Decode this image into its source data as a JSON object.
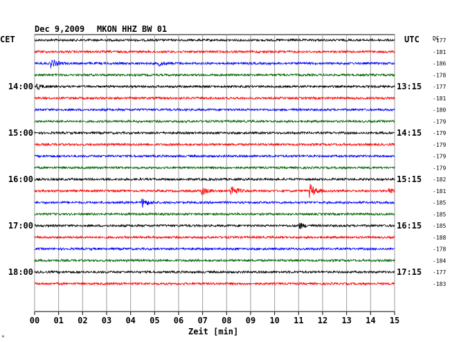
{
  "header": {
    "date": "Dec 9,2009",
    "station": "MKON HHZ BW 01",
    "left_zone": "CET",
    "right_zone": "UTC",
    "dc_label": "DC",
    "corner_mark": "ᴹ"
  },
  "chart_data": {
    "type": "line",
    "title": "Dec 9,2009   MKON HHZ BW 01",
    "xlabel": "Zeit [min]",
    "x_ticks": [
      "00",
      "01",
      "02",
      "03",
      "04",
      "05",
      "06",
      "07",
      "08",
      "09",
      "10",
      "11",
      "12",
      "13",
      "14",
      "15"
    ],
    "xlim": [
      0,
      15
    ],
    "grid": true,
    "trace_colors": [
      "#000000",
      "#ff0000",
      "#0000ff",
      "#006400"
    ],
    "left_hour_labels": [
      "14:00",
      "15:00",
      "16:00",
      "17:00",
      "18:00"
    ],
    "right_hour_labels": [
      "13:15",
      "14:15",
      "15:15",
      "16:15",
      "17:15"
    ],
    "dc_offsets": [
      -177,
      -181,
      -186,
      -178,
      -177,
      -181,
      -180,
      -179,
      -179,
      -179,
      -179,
      -179,
      -182,
      -181,
      -185,
      -185,
      -185,
      -188,
      -178,
      -184,
      -177,
      -183
    ],
    "events": [
      {
        "trace": 2,
        "minute": 0.7,
        "amplitude": 6
      },
      {
        "trace": 4,
        "minute": 0.1,
        "amplitude": 4
      },
      {
        "trace": 2,
        "minute": 5.2,
        "amplitude": 3
      },
      {
        "trace": 13,
        "minute": 7.0,
        "amplitude": 5
      },
      {
        "trace": 13,
        "minute": 8.2,
        "amplitude": 8
      },
      {
        "trace": 13,
        "minute": 11.5,
        "amplitude": 9
      },
      {
        "trace": 13,
        "minute": 14.8,
        "amplitude": 4
      },
      {
        "trace": 14,
        "minute": 4.5,
        "amplitude": 6
      },
      {
        "trace": 16,
        "minute": 11.0,
        "amplitude": 5
      }
    ]
  }
}
